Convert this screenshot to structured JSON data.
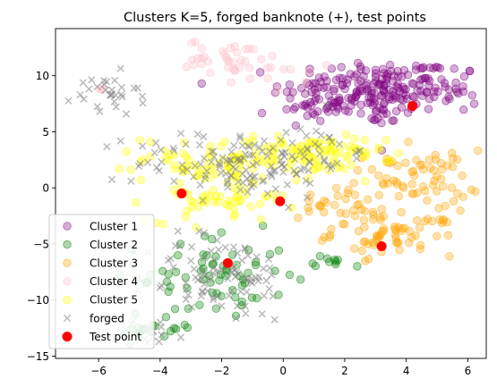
{
  "chart_data": {
    "type": "scatter",
    "title": "Clusters K=5, forged banknote (+), test points",
    "xlim": [
      -7.4,
      6.6
    ],
    "ylim": [
      -15.2,
      14.2
    ],
    "xticks": [
      -6,
      -4,
      -2,
      0,
      2,
      4,
      6
    ],
    "yticks": [
      -15,
      -10,
      -5,
      0,
      5,
      10
    ],
    "xtick_labels": [
      "−6",
      "−4",
      "−2",
      "0",
      "2",
      "4",
      "6"
    ],
    "ytick_labels": [
      "−15",
      "−10",
      "−5",
      "0",
      "5",
      "10"
    ],
    "grid": false,
    "legend_position": "lower-left",
    "clusters": [
      {
        "name": "Cluster 1",
        "color": "#800080",
        "regions": [
          {
            "cx": 2.6,
            "cy": 8.6,
            "sx": 1.3,
            "sy": 1.5,
            "n": 150
          },
          {
            "cx": 4.6,
            "cy": 8.8,
            "sx": 0.9,
            "sy": 1.3,
            "n": 70
          },
          {
            "cx": 0.8,
            "cy": 7.5,
            "sx": 0.6,
            "sy": 1.0,
            "n": 25
          }
        ]
      },
      {
        "name": "Cluster 2",
        "color": "#008000",
        "regions": [
          {
            "cx": -2.3,
            "cy": -7.8,
            "sx": 1.2,
            "sy": 1.9,
            "n": 70
          },
          {
            "cx": -4.2,
            "cy": -12.5,
            "sx": 0.7,
            "sy": 0.7,
            "n": 18
          },
          {
            "cx": 1.8,
            "cy": -6.6,
            "sx": 0.4,
            "sy": 0.3,
            "n": 10
          }
        ]
      },
      {
        "name": "Cluster 3",
        "color": "#FFA500",
        "regions": [
          {
            "cx": 4.2,
            "cy": 0.8,
            "sx": 1.1,
            "sy": 1.3,
            "n": 70
          },
          {
            "cx": 3.6,
            "cy": -4.0,
            "sx": 1.0,
            "sy": 1.0,
            "n": 70
          },
          {
            "cx": 1.8,
            "cy": -2.0,
            "sx": 0.9,
            "sy": 1.0,
            "n": 25
          }
        ]
      },
      {
        "name": "Cluster 4",
        "color": "#FFC0CB",
        "regions": [
          {
            "cx": -1.7,
            "cy": 11.6,
            "sx": 0.7,
            "sy": 0.8,
            "n": 35
          },
          {
            "cx": -0.4,
            "cy": 10.0,
            "sx": 0.6,
            "sy": 0.7,
            "n": 10
          },
          {
            "cx": -5.7,
            "cy": 8.6,
            "sx": 0.2,
            "sy": 0.3,
            "n": 3
          }
        ]
      },
      {
        "name": "Cluster 5",
        "color": "#FFFF00",
        "regions": [
          {
            "cx": -1.3,
            "cy": 2.6,
            "sx": 1.6,
            "sy": 1.0,
            "n": 110
          },
          {
            "cx": 1.3,
            "cy": 3.0,
            "sx": 1.0,
            "sy": 0.8,
            "n": 60
          },
          {
            "cx": -2.0,
            "cy": -0.8,
            "sx": 1.2,
            "sy": 1.1,
            "n": 60
          }
        ]
      }
    ],
    "forged": {
      "name": "forged",
      "color": "#808080",
      "regions": [
        {
          "cx": -5.8,
          "cy": 8.2,
          "sx": 0.55,
          "sy": 1.0,
          "n": 30
        },
        {
          "cx": -1.4,
          "cy": 2.2,
          "sx": 1.7,
          "sy": 1.5,
          "n": 130
        },
        {
          "cx": 0.9,
          "cy": 3.5,
          "sx": 0.7,
          "sy": 1.0,
          "n": 25
        },
        {
          "cx": -2.0,
          "cy": -8.0,
          "sx": 1.2,
          "sy": 2.0,
          "n": 90
        },
        {
          "cx": -4.3,
          "cy": -12.8,
          "sx": 0.6,
          "sy": 0.6,
          "n": 15
        }
      ]
    },
    "test_points": {
      "name": "Test point",
      "color": "#FF0000",
      "points": [
        {
          "x": -3.3,
          "y": -0.5
        },
        {
          "x": -0.1,
          "y": -1.2
        },
        {
          "x": -1.8,
          "y": -6.7
        },
        {
          "x": 3.2,
          "y": -5.2
        },
        {
          "x": 4.2,
          "y": 7.3
        }
      ]
    },
    "legend": [
      "Cluster 1",
      "Cluster 2",
      "Cluster 3",
      "Cluster 4",
      "Cluster 5",
      "forged",
      "Test point"
    ]
  }
}
